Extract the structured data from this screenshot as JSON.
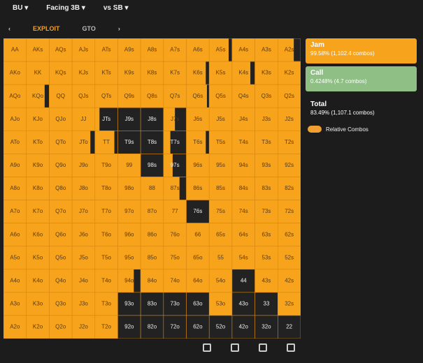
{
  "header": {
    "items": [
      "BU",
      "Facing 3B",
      "vs SB"
    ]
  },
  "tabs": [
    "EXPLOIT",
    "GTO"
  ],
  "grid": {
    "rows": [
      [
        "AA",
        "AKs",
        "AQs",
        "AJs",
        "ATs",
        "A9s",
        "A8s",
        "A7s",
        "A6s",
        "A5s",
        "A4s",
        "A3s",
        "A2s"
      ],
      [
        "AKo",
        "KK",
        "KQs",
        "KJs",
        "KTs",
        "K9s",
        "K8s",
        "K7s",
        "K6s",
        "K5s",
        "K4s",
        "K3s",
        "K2s"
      ],
      [
        "AQo",
        "KQo",
        "QQ",
        "QJs",
        "QTs",
        "Q9s",
        "Q8s",
        "Q7s",
        "Q6s",
        "Q5s",
        "Q4s",
        "Q3s",
        "Q2s"
      ],
      [
        "AJo",
        "KJo",
        "QJo",
        "JJ",
        "JTs",
        "J9s",
        "J8s",
        "J7s",
        "J6s",
        "J5s",
        "J4s",
        "J3s",
        "J2s"
      ],
      [
        "ATo",
        "KTo",
        "QTo",
        "JTo",
        "TT",
        "T9s",
        "T8s",
        "T7s",
        "T6s",
        "T5s",
        "T4s",
        "T3s",
        "T2s"
      ],
      [
        "A9o",
        "K9o",
        "Q9o",
        "J9o",
        "T9o",
        "99",
        "98s",
        "97s",
        "96s",
        "95s",
        "94s",
        "93s",
        "92s"
      ],
      [
        "A8o",
        "K8o",
        "Q8o",
        "J8o",
        "T8o",
        "98o",
        "88",
        "87s",
        "86s",
        "85s",
        "84s",
        "83s",
        "82s"
      ],
      [
        "A7o",
        "K7o",
        "Q7o",
        "J7o",
        "T7o",
        "97o",
        "87o",
        "77",
        "76s",
        "75s",
        "74s",
        "73s",
        "72s"
      ],
      [
        "A6o",
        "K6o",
        "Q6o",
        "J6o",
        "T6o",
        "96o",
        "86o",
        "76o",
        "66",
        "65s",
        "64s",
        "63s",
        "62s"
      ],
      [
        "A5o",
        "K5o",
        "Q5o",
        "J5o",
        "T5o",
        "95o",
        "85o",
        "75o",
        "65o",
        "55",
        "54s",
        "53s",
        "52s"
      ],
      [
        "A4o",
        "K4o",
        "Q4o",
        "J4o",
        "T4o",
        "94o",
        "84o",
        "74o",
        "64o",
        "54o",
        "44",
        "43s",
        "42s"
      ],
      [
        "A3o",
        "K3o",
        "Q3o",
        "J3o",
        "T3o",
        "93o",
        "83o",
        "73o",
        "63o",
        "53o",
        "43o",
        "33",
        "32s"
      ],
      [
        "A2o",
        "K2o",
        "Q2o",
        "J2o",
        "T2o",
        "92o",
        "82o",
        "72o",
        "62o",
        "52o",
        "42o",
        "32o",
        "22"
      ]
    ],
    "jam": [
      [
        1,
        1,
        1,
        1,
        1,
        1,
        1,
        1,
        1,
        0.85,
        1,
        1,
        0.7
      ],
      [
        1,
        1,
        1,
        1,
        1,
        1,
        1,
        1,
        0.85,
        1,
        0.8,
        1,
        1
      ],
      [
        1,
        0.8,
        1,
        1,
        1,
        1,
        1,
        1,
        0.9,
        1,
        1,
        1,
        1
      ],
      [
        1,
        1,
        1,
        1,
        0.2,
        0,
        0,
        0.5,
        1,
        1,
        1,
        1,
        1
      ],
      [
        1,
        1,
        1,
        0.8,
        0.85,
        0,
        0,
        0.3,
        0.85,
        1,
        1,
        1,
        1
      ],
      [
        1,
        1,
        1,
        1,
        1,
        1,
        0,
        0.4,
        1,
        1,
        1,
        1,
        1
      ],
      [
        1,
        1,
        1,
        1,
        1,
        1,
        1,
        0.7,
        1,
        1,
        1,
        1,
        1
      ],
      [
        1,
        1,
        1,
        1,
        1,
        1,
        1,
        1,
        0,
        1,
        1,
        1,
        1
      ],
      [
        1,
        1,
        1,
        1,
        1,
        1,
        1,
        1,
        1,
        1,
        1,
        1,
        1
      ],
      [
        1,
        1,
        1,
        1,
        1,
        1,
        1,
        1,
        1,
        1,
        1,
        1,
        1
      ],
      [
        1,
        1,
        1,
        1,
        1,
        0.7,
        1,
        1,
        1,
        1,
        0,
        1,
        1
      ],
      [
        1,
        1,
        1,
        1,
        1,
        0,
        0,
        0,
        0,
        1,
        0,
        0,
        1
      ],
      [
        1,
        1,
        1,
        1,
        1,
        0,
        0,
        0,
        0,
        0,
        0,
        0,
        0
      ]
    ]
  },
  "actions": [
    {
      "name": "Jam",
      "detail": "99.58% (1,102.4 combos)"
    },
    {
      "name": "Call",
      "detail": "0.4248% (4.7 combos)"
    }
  ],
  "total": {
    "label": "Total",
    "detail": "83.49% (1,107.1 combos)"
  },
  "toggle": "Relative Combos"
}
